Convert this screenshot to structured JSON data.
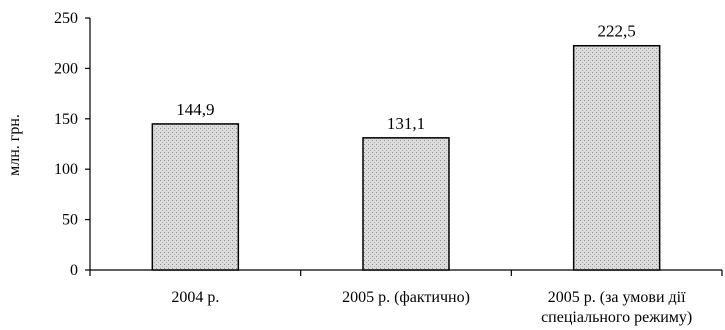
{
  "chart_data": {
    "type": "bar",
    "categories": [
      [
        "2004 р."
      ],
      [
        "2005 р. (фактично)"
      ],
      [
        "2005 р. (за умови дії",
        "спеціального режиму)"
      ]
    ],
    "values": [
      144.9,
      131.1,
      222.5
    ],
    "data_labels": [
      "144,9",
      "131,1",
      "222,5"
    ],
    "ylabel": "млн. грн.",
    "ylim": [
      0,
      250
    ],
    "yticks": [
      0,
      50,
      100,
      150,
      200,
      250
    ],
    "ytick_labels": [
      "0",
      "50",
      "100",
      "150",
      "200",
      "250"
    ],
    "grid": false,
    "legend": "none",
    "colors": {
      "bar_fill": "#d9d9d9",
      "bar_dots": "#8c8c8c",
      "axis": "#000000"
    }
  }
}
